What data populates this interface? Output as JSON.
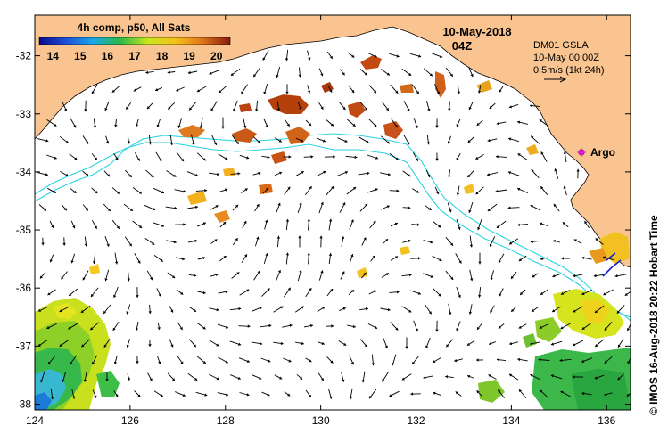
{
  "colors": {
    "land": "#f9c490",
    "frame": "#000000",
    "contour": "#29d3e0",
    "argo": "#e020e0"
  },
  "legend": {
    "title": "4h comp, p50, All Sats",
    "ticks": [
      "14",
      "15",
      "16",
      "17",
      "18",
      "19",
      "20"
    ],
    "range": [
      13.5,
      20.5
    ]
  },
  "date": {
    "line1": "10-May-2018",
    "line2": "04Z"
  },
  "info": {
    "line1": "DM01 GSLA",
    "line2": "10-May 00:00Z",
    "line3": "0.5m/s (1kt 24h)"
  },
  "argo_label": "Argo",
  "credit": "© IMOS 16-Aug-2018 20:22 Hobart Time",
  "axes": {
    "x_ticks": [
      "124",
      "126",
      "128",
      "130",
      "132",
      "134",
      "136"
    ],
    "y_ticks": [
      "-32",
      "-33",
      "-34",
      "-35",
      "-36",
      "-37",
      "-38"
    ],
    "lon_range": [
      124,
      136.5
    ],
    "lat_range": [
      -31.3,
      -38.1
    ]
  }
}
